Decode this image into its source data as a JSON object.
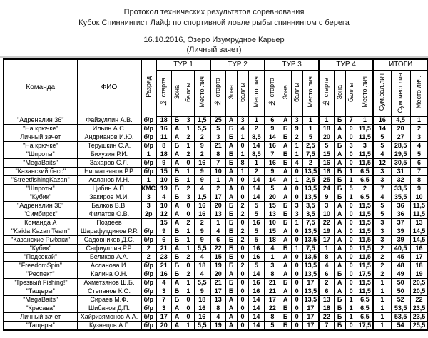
{
  "title": {
    "line1": "Протокол технических результатов соревнования",
    "line2": "Кубок Спиннингист Лайф по спортивной ловле рыбы спиннингом с берега",
    "line3": "16.10.2016, Озеро Изумрудное Карьер",
    "line4": "(Личный зачет)"
  },
  "table": {
    "col_team": "Команда",
    "col_fio": "ФИО",
    "col_razryad": "Разряд",
    "tour_labels": [
      "ТУР 1",
      "ТУР 2",
      "ТУР 3",
      "ТУР 4"
    ],
    "tour_subcols": [
      "№ старта",
      "Зона",
      "баллы",
      "Место лич"
    ],
    "itogi_label": "ИТОГИ",
    "itogi_subcols": [
      "Сум.бал.лич",
      "Сум.мест.лич.",
      "Место лич."
    ],
    "rows": [
      {
        "team": "\"Адреналин 36\"",
        "fio": "Файзуллин А.В.",
        "razryad": "б/р",
        "t": [
          "18",
          "Б",
          "3",
          "1,5",
          "25",
          "А",
          "3",
          "1",
          "6",
          "А",
          "3",
          "1",
          "1",
          "Б",
          "7",
          "1",
          "16",
          "4,5",
          "1"
        ]
      },
      {
        "team": "\"На крючке\"",
        "fio": "Ильин А.С.",
        "razryad": "б/р",
        "t": [
          "16",
          "А",
          "1",
          "5,5",
          "5",
          "Б",
          "4",
          "2",
          "9",
          "Б",
          "9",
          "1",
          "18",
          "А",
          "0",
          "11,5",
          "14",
          "20",
          "2"
        ]
      },
      {
        "team": "Личный зачет",
        "fio": "Андрианов И.Ю.",
        "razryad": "б/р",
        "t": [
          "11",
          "А",
          "2",
          "2",
          "3",
          "Б",
          "1",
          "8,5",
          "14",
          "Б",
          "2",
          "5",
          "20",
          "А",
          "0",
          "11,5",
          "5",
          "27",
          "3"
        ]
      },
      {
        "team": "\"На крючке\"",
        "fio": "Терушкин С.А.",
        "razryad": "б/р",
        "t": [
          "8",
          "Б",
          "1",
          "9",
          "21",
          "А",
          "0",
          "14",
          "16",
          "А",
          "1",
          "2,5",
          "5",
          "Б",
          "3",
          "3",
          "5",
          "28,5",
          "4"
        ]
      },
      {
        "team": "\"Шпроты\"",
        "fio": "Бихузин Р.И.",
        "razryad": "1",
        "t": [
          "18",
          "А",
          "2",
          "2",
          "8",
          "Б",
          "1",
          "8,5",
          "7",
          "Б",
          "1",
          "7,5",
          "15",
          "А",
          "0",
          "11,5",
          "4",
          "29,5",
          "5"
        ]
      },
      {
        "team": "\"MegaBaits\"",
        "fio": "Захаров С.Л.",
        "razryad": "б/р",
        "t": [
          "9",
          "А",
          "0",
          "16",
          "7",
          "Б",
          "8",
          "1",
          "16",
          "Б",
          "4",
          "2",
          "16",
          "А",
          "0",
          "11,5",
          "12",
          "30,5",
          "6"
        ]
      },
      {
        "team": "\"Казанский басс\"",
        "fio": "Нигматзянов Р.Р.",
        "razryad": "б/р",
        "t": [
          "15",
          "Б",
          "1",
          "9",
          "10",
          "А",
          "1",
          "2",
          "9",
          "А",
          "0",
          "13,5",
          "16",
          "Б",
          "1",
          "6,5",
          "3",
          "31",
          "7"
        ]
      },
      {
        "team": "\"StreetfishingKazan\"",
        "fio": "Асланов М.Н.",
        "razryad": "1",
        "t": [
          "10",
          "Б",
          "1",
          "9",
          "1",
          "А",
          "0",
          "14",
          "14",
          "А",
          "1",
          "2,5",
          "25",
          "Б",
          "1",
          "6,5",
          "3",
          "32",
          "8"
        ]
      },
      {
        "team": "\"Шпроты\"",
        "fio": "Цибин А.П.",
        "razryad": "КМС",
        "t": [
          "19",
          "Б",
          "2",
          "4",
          "2",
          "А",
          "0",
          "14",
          "5",
          "А",
          "0",
          "13,5",
          "24",
          "Б",
          "5",
          "2",
          "7",
          "33,5",
          "9"
        ]
      },
      {
        "team": "\"Кубик\"",
        "fio": "Закиров М.И.",
        "razryad": "3",
        "t": [
          "4",
          "Б",
          "3",
          "1,5",
          "17",
          "А",
          "0",
          "14",
          "20",
          "А",
          "0",
          "13,5",
          "9",
          "Б",
          "1",
          "6,5",
          "4",
          "35,5",
          "10"
        ]
      },
      {
        "team": "\"Адреналин 36\"",
        "fio": "Балков В.В.",
        "razryad": "3",
        "t": [
          "10",
          "А",
          "0",
          "16",
          "20",
          "Б",
          "2",
          "5",
          "15",
          "Б",
          "3",
          "3,5",
          "3",
          "А",
          "0",
          "11,5",
          "5",
          "36",
          "11,5"
        ]
      },
      {
        "team": "\"Симбирск\"",
        "fio": "Филатов О.В.",
        "razryad": "2р",
        "t": [
          "12",
          "А",
          "0",
          "16",
          "13",
          "Б",
          "2",
          "5",
          "13",
          "Б",
          "3",
          "3,5",
          "10",
          "А",
          "0",
          "11,5",
          "5",
          "36",
          "11,5"
        ]
      },
      {
        "team": "Команда А",
        "fio": "Поздеев",
        "razryad": "",
        "t": [
          "15",
          "А",
          "2",
          "2",
          "1",
          "Б",
          "0",
          "16",
          "10",
          "Б",
          "1",
          "7,5",
          "22",
          "А",
          "0",
          "11,5",
          "3",
          "37",
          "13"
        ]
      },
      {
        "team": "\"Kaida Kazan Team\"",
        "fio": "Шарафутдинов Р.Р.",
        "razryad": "б/р",
        "t": [
          "9",
          "Б",
          "1",
          "9",
          "4",
          "Б",
          "2",
          "5",
          "15",
          "А",
          "0",
          "13,5",
          "19",
          "А",
          "0",
          "11,5",
          "3",
          "39",
          "14,5"
        ]
      },
      {
        "team": "\"Казанские Рыбаки\"",
        "fio": "Садовников Д.С.",
        "razryad": "б/р",
        "t": [
          "6",
          "Б",
          "1",
          "9",
          "6",
          "Б",
          "2",
          "5",
          "18",
          "А",
          "0",
          "13,5",
          "17",
          "А",
          "0",
          "11,5",
          "3",
          "39",
          "14,5"
        ]
      },
      {
        "team": "\"Кубик\"",
        "fio": "Сафиуллин Р.Р.",
        "razryad": "2",
        "t": [
          "21",
          "А",
          "1",
          "5,5",
          "22",
          "Б",
          "0",
          "16",
          "4",
          "Б",
          "1",
          "7,5",
          "1",
          "А",
          "0",
          "11,5",
          "2",
          "40,5",
          "16"
        ]
      },
      {
        "team": "\"Подсекай\"",
        "fio": "Беликов А.А.",
        "razryad": "2",
        "t": [
          "23",
          "Б",
          "2",
          "4",
          "15",
          "Б",
          "0",
          "16",
          "1",
          "А",
          "0",
          "13,5",
          "8",
          "А",
          "0",
          "11,5",
          "2",
          "45",
          "17"
        ]
      },
      {
        "team": "\"FreedomSpin\"",
        "fio": "Асланова И.",
        "razryad": "б/р",
        "t": [
          "21",
          "Б",
          "0",
          "18",
          "19",
          "Б",
          "2",
          "5",
          "3",
          "А",
          "0",
          "13,5",
          "4",
          "А",
          "0",
          "11,5",
          "2",
          "48",
          "18"
        ]
      },
      {
        "team": "\"Респект\"",
        "fio": "Калина О.Н.",
        "razryad": "б/р",
        "t": [
          "16",
          "Б",
          "2",
          "4",
          "20",
          "А",
          "0",
          "14",
          "8",
          "А",
          "0",
          "13,5",
          "6",
          "Б",
          "0",
          "17,5",
          "2",
          "49",
          "19"
        ]
      },
      {
        "team": "\"Трезвый Fishing!\"",
        "fio": "Ахметзянов Ш.Б.",
        "razryad": "б/р",
        "t": [
          "4",
          "А",
          "1",
          "5,5",
          "21",
          "Б",
          "0",
          "16",
          "21",
          "Б",
          "0",
          "17",
          "2",
          "А",
          "0",
          "11,5",
          "1",
          "50",
          "20,5"
        ]
      },
      {
        "team": "\"Тащеры\"",
        "fio": "Степанов К.О.",
        "razryad": "б/р",
        "t": [
          "3",
          "Б",
          "1",
          "9",
          "17",
          "Б",
          "0",
          "16",
          "21",
          "А",
          "0",
          "13,5",
          "6",
          "А",
          "0",
          "11,5",
          "1",
          "50",
          "20,5"
        ]
      },
      {
        "team": "\"MegaBaits\"",
        "fio": "Сираев М.Ф.",
        "razryad": "б/р",
        "t": [
          "7",
          "Б",
          "0",
          "18",
          "13",
          "А",
          "0",
          "14",
          "17",
          "А",
          "0",
          "13,5",
          "13",
          "Б",
          "1",
          "6,5",
          "1",
          "52",
          "22"
        ]
      },
      {
        "team": "\"Красава\"",
        "fio": "Шибанов Д.П.",
        "razryad": "б/р",
        "t": [
          "3",
          "А",
          "0",
          "16",
          "8",
          "А",
          "0",
          "14",
          "22",
          "Б",
          "0",
          "17",
          "18",
          "Б",
          "1",
          "6,5",
          "1",
          "53,5",
          "23,5"
        ]
      },
      {
        "team": "Личный зачет",
        "fio": "Хайризямонов А.А.",
        "razryad": "б/р",
        "t": [
          "17",
          "А",
          "0",
          "16",
          "4",
          "А",
          "0",
          "14",
          "8",
          "Б",
          "0",
          "17",
          "22",
          "Б",
          "1",
          "6,5",
          "1",
          "53,5",
          "23,5"
        ]
      },
      {
        "team": "\"Тащеры\"",
        "fio": "Кузнецов А.Г.",
        "razryad": "б/р",
        "t": [
          "20",
          "А",
          "1",
          "5,5",
          "19",
          "А",
          "0",
          "14",
          "5",
          "Б",
          "0",
          "17",
          "7",
          "Б",
          "0",
          "17,5",
          "1",
          "54",
          "25,5"
        ]
      }
    ]
  }
}
